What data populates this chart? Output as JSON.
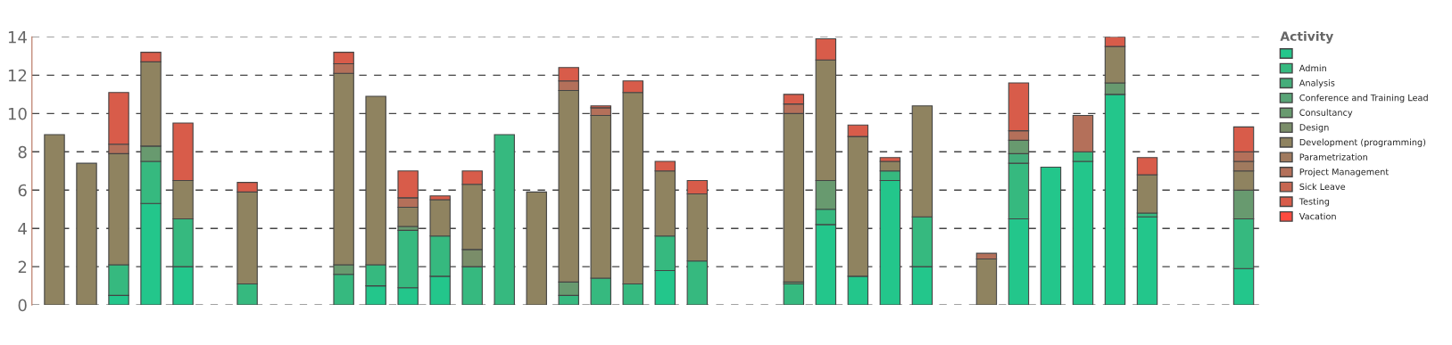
{
  "chart_data": {
    "type": "bar",
    "stacked": true,
    "legend_title": "Activity",
    "legend": "top right",
    "grid": "y",
    "ylim": [
      0,
      14
    ],
    "yticks": [
      0,
      2,
      4,
      6,
      8,
      10,
      12,
      14
    ],
    "categories": [
      null,
      null,
      null,
      null,
      null,
      null,
      null,
      null,
      null,
      null,
      null,
      null,
      null,
      null,
      null,
      null,
      null,
      null,
      null,
      null,
      null,
      null,
      null,
      null,
      null,
      null,
      null,
      null,
      null,
      null,
      null,
      null,
      null,
      null,
      null,
      null,
      null,
      null
    ],
    "series": [
      {
        "color": "#23c68b",
        "values": [
          null,
          null,
          0.5,
          5.3,
          2.0,
          null,
          null,
          null,
          null,
          null,
          1.0,
          0.9,
          1.5,
          null,
          null,
          null,
          null,
          null,
          null,
          1.8,
          null,
          null,
          null,
          null,
          4.2,
          1.5,
          6.5,
          2.0,
          null,
          null,
          4.5,
          7.2,
          7.5,
          11.0,
          4.6,
          null,
          null,
          1.9
        ]
      },
      {
        "name": "Admin",
        "color": "#36b97f",
        "values": [
          null,
          null,
          1.6,
          2.2,
          2.5,
          null,
          1.1,
          null,
          null,
          1.6,
          1.1,
          3.0,
          2.1,
          2.0,
          8.9,
          null,
          0.5,
          1.4,
          1.1,
          1.8,
          2.3,
          null,
          null,
          1.1,
          0.8,
          null,
          0.5,
          2.6,
          null,
          null,
          2.9,
          null,
          0.5,
          null,
          0.2,
          null,
          null,
          2.6
        ]
      },
      {
        "name": "Analysis",
        "color": "#44ad7a",
        "values": [
          null,
          null,
          null,
          null,
          null,
          null,
          null,
          null,
          null,
          null,
          null,
          null,
          null,
          null,
          null,
          null,
          null,
          null,
          null,
          null,
          null,
          null,
          null,
          null,
          null,
          null,
          null,
          null,
          null,
          null,
          0.5,
          null,
          null,
          null,
          null,
          null,
          null,
          null
        ]
      },
      {
        "name": "Conference and Training Lead",
        "color": "#58a476",
        "values": [
          null,
          null,
          null,
          null,
          null,
          null,
          null,
          null,
          null,
          null,
          null,
          null,
          null,
          null,
          null,
          null,
          null,
          null,
          null,
          null,
          null,
          null,
          null,
          null,
          null,
          null,
          null,
          null,
          null,
          null,
          null,
          null,
          null,
          null,
          null,
          null,
          null,
          null
        ]
      },
      {
        "name": "Consultancy",
        "color": "#689a6f",
        "values": [
          null,
          null,
          null,
          0.8,
          null,
          null,
          null,
          null,
          null,
          0.5,
          null,
          0.2,
          null,
          null,
          null,
          null,
          0.7,
          null,
          null,
          null,
          null,
          null,
          null,
          0.1,
          1.5,
          null,
          null,
          null,
          null,
          null,
          0.7,
          null,
          null,
          0.6,
          null,
          null,
          null,
          1.5
        ]
      },
      {
        "name": "Design",
        "color": "#7a8d69",
        "values": [
          null,
          null,
          null,
          null,
          null,
          null,
          null,
          null,
          null,
          null,
          null,
          null,
          null,
          0.9,
          null,
          null,
          null,
          null,
          null,
          null,
          null,
          null,
          null,
          null,
          null,
          null,
          null,
          null,
          null,
          null,
          null,
          null,
          null,
          null,
          null,
          null,
          null,
          null
        ]
      },
      {
        "name": "Development (programming)",
        "color": "#8f8360",
        "values": [
          8.9,
          7.4,
          5.8,
          4.4,
          2.0,
          null,
          4.8,
          null,
          null,
          10.0,
          8.8,
          1.0,
          1.9,
          3.4,
          null,
          5.9,
          10.0,
          8.5,
          10.0,
          3.4,
          3.5,
          null,
          null,
          8.8,
          6.3,
          7.3,
          0.5,
          5.8,
          null,
          2.4,
          null,
          null,
          null,
          1.9,
          2.0,
          null,
          null,
          1.0
        ]
      },
      {
        "name": "Parametrization",
        "color": "#a07a5e",
        "values": [
          null,
          null,
          null,
          null,
          null,
          null,
          null,
          null,
          null,
          null,
          null,
          null,
          null,
          null,
          null,
          null,
          null,
          null,
          null,
          null,
          null,
          null,
          null,
          null,
          null,
          null,
          null,
          null,
          null,
          null,
          null,
          null,
          null,
          null,
          null,
          null,
          null,
          0.5
        ]
      },
      {
        "name": "Project Management",
        "color": "#b4705a",
        "values": [
          null,
          null,
          0.5,
          null,
          null,
          null,
          null,
          null,
          null,
          0.5,
          null,
          0.5,
          null,
          null,
          null,
          null,
          0.5,
          0.4,
          null,
          null,
          null,
          null,
          null,
          0.5,
          null,
          null,
          null,
          null,
          null,
          0.3,
          0.5,
          null,
          1.9,
          null,
          null,
          null,
          null,
          0.5
        ]
      },
      {
        "name": "Sick Leave",
        "color": "#c76651",
        "values": [
          null,
          null,
          null,
          null,
          null,
          null,
          null,
          null,
          null,
          null,
          null,
          null,
          null,
          null,
          null,
          null,
          null,
          null,
          null,
          null,
          null,
          null,
          null,
          null,
          null,
          null,
          null,
          null,
          null,
          null,
          null,
          null,
          null,
          null,
          null,
          null,
          null,
          null
        ]
      },
      {
        "name": "Testing",
        "color": "#d85c4a",
        "values": [
          null,
          null,
          2.7,
          0.5,
          3.0,
          null,
          0.5,
          null,
          null,
          0.6,
          null,
          1.4,
          0.2,
          0.7,
          null,
          null,
          0.7,
          0.1,
          0.6,
          0.5,
          0.7,
          null,
          null,
          0.5,
          1.1,
          0.6,
          0.2,
          null,
          null,
          null,
          2.5,
          null,
          null,
          0.5,
          0.9,
          null,
          null,
          1.3
        ]
      },
      {
        "name": "Vacation",
        "color": "#ff4b3f",
        "values": [
          null,
          null,
          null,
          null,
          null,
          null,
          null,
          null,
          null,
          null,
          null,
          null,
          null,
          null,
          null,
          null,
          null,
          null,
          null,
          null,
          null,
          null,
          null,
          null,
          null,
          null,
          null,
          null,
          null,
          null,
          null,
          null,
          null,
          null,
          null,
          null,
          null,
          null
        ]
      }
    ]
  }
}
